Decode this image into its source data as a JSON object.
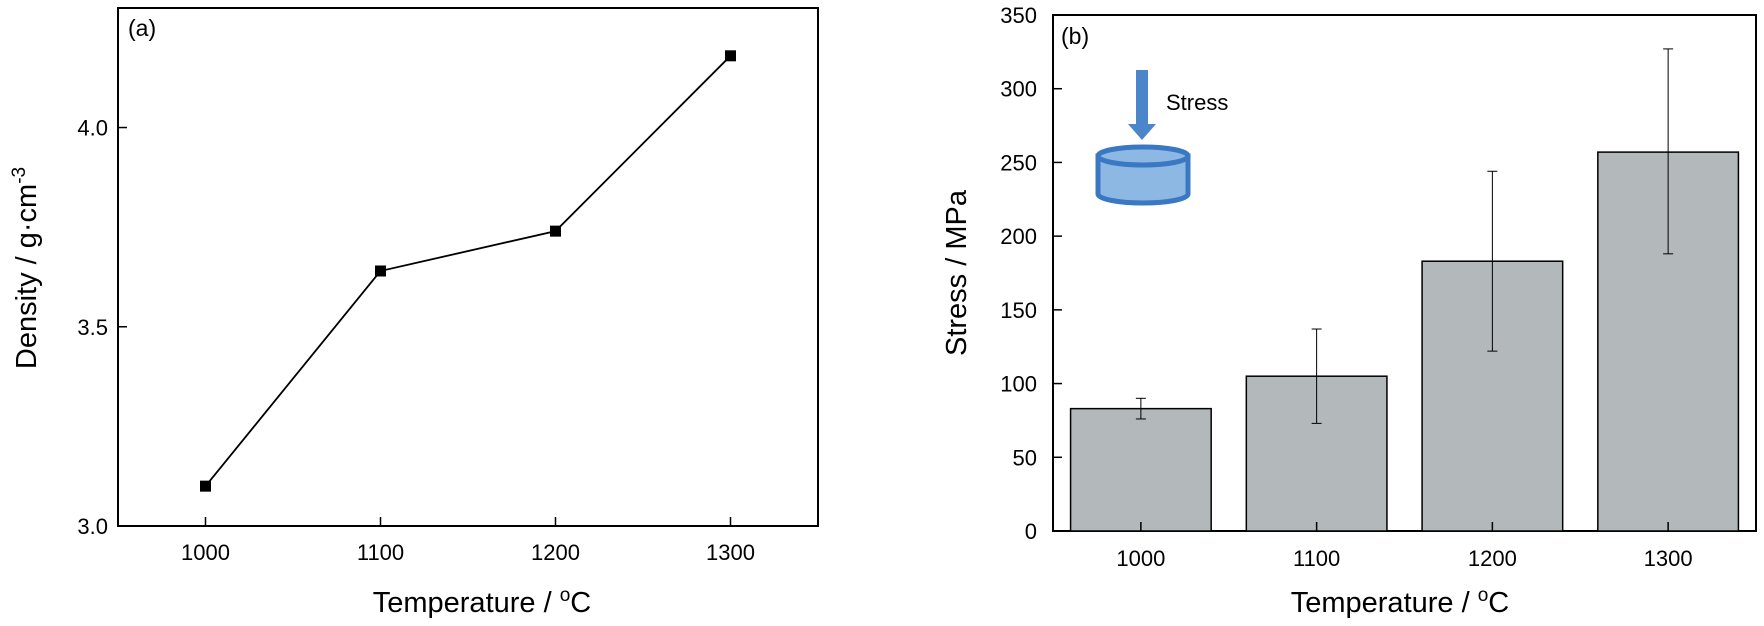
{
  "colors": {
    "axis": "#000000",
    "bar_fill": "#b3b8bb",
    "marker": "#000000",
    "arrow": "#4a86c9",
    "disk_fill": "#8cb8e3",
    "disk_stroke": "#3a78c3"
  },
  "inset": {
    "arrow_label": "Stress",
    "icons": [
      "arrow-down-icon",
      "cylinder-disk-icon"
    ]
  },
  "chart_data": [
    {
      "type": "line",
      "panel_label": "(a)",
      "title": "",
      "x": [
        1000,
        1100,
        1200,
        1300
      ],
      "series": [
        {
          "values": [
            3.1,
            3.64,
            3.74,
            4.18
          ],
          "marker": "square"
        }
      ],
      "xlabel": "Temperature / ",
      "xlabel_unit_sup": "o",
      "xlabel_unit": "C",
      "ylabel": "Density / g·cm",
      "ylabel_sup": "-3",
      "xlim": [
        950,
        1350
      ],
      "ylim": [
        3.0,
        4.3
      ],
      "xticks": [
        1000,
        1100,
        1200,
        1300
      ],
      "xtick_labels": [
        "1000",
        "1100",
        "1200",
        "1300"
      ],
      "yticks": [
        3.0,
        3.5,
        4.0
      ],
      "ytick_labels": [
        "3.0",
        "3.5",
        "4.0"
      ],
      "grid": false,
      "legend": "none"
    },
    {
      "type": "bar",
      "panel_label": "(b)",
      "title": "",
      "categories": [
        "1000",
        "1100",
        "1200",
        "1300"
      ],
      "values": [
        83,
        105,
        183,
        257
      ],
      "error_low": [
        76,
        73,
        122,
        188
      ],
      "error_high": [
        90,
        137,
        244,
        327
      ],
      "xlabel": "Temperature / ",
      "xlabel_unit_sup": "o",
      "xlabel_unit": "C",
      "ylabel": "Stress / MPa",
      "ylim": [
        0,
        350
      ],
      "yticks": [
        0,
        50,
        100,
        150,
        200,
        250,
        300,
        350
      ],
      "ytick_labels": [
        "0",
        "50",
        "100",
        "150",
        "200",
        "250",
        "300",
        "350"
      ],
      "grid": false,
      "legend": "none"
    }
  ]
}
